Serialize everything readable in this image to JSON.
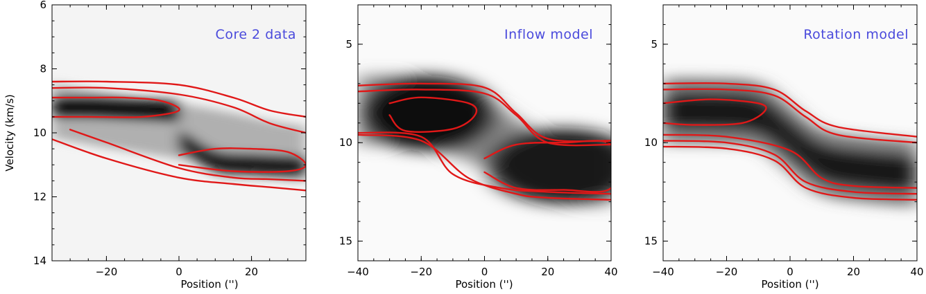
{
  "chart_data": [
    {
      "type": "heatmap",
      "title": "Core 2 data",
      "xlabel": "Position ('')",
      "ylabel": "Velocity (km/s)",
      "xlim": [
        -35,
        35
      ],
      "ylim": [
        14,
        6
      ],
      "y_inverted": true,
      "xticks": [
        -20,
        0,
        20
      ],
      "yticks": [
        6,
        8,
        10,
        12,
        14
      ],
      "colormap": "grayscale (white low, black high)",
      "title_color": "#4a4adc",
      "contour_color": "#e01818",
      "intensity_ridges": [
        {
          "x": [
            -35,
            -25,
            -15,
            -5,
            0
          ],
          "y": [
            9.2,
            9.2,
            9.25,
            9.3,
            9.35
          ],
          "amplitude": 1.0
        },
        {
          "x": [
            0,
            10,
            20,
            30,
            35
          ],
          "y": [
            10.2,
            10.9,
            11.0,
            11.05,
            11.05
          ],
          "amplitude": 0.85
        }
      ],
      "contours": [
        {
          "level": "outer",
          "x_upper": [
            -35,
            -20,
            0,
            15,
            25,
            35
          ],
          "y_upper": [
            8.4,
            8.4,
            8.5,
            8.9,
            9.3,
            9.5
          ],
          "x_lower": [
            -35,
            -20,
            0,
            15,
            25,
            35
          ],
          "y_lower": [
            10.2,
            10.8,
            11.4,
            11.6,
            11.7,
            11.8
          ]
        },
        {
          "level": "middle",
          "x_upper": [
            -35,
            -20,
            0,
            15,
            25,
            35
          ],
          "y_upper": [
            8.6,
            8.6,
            8.8,
            9.2,
            9.7,
            10.0
          ],
          "x_lower": [
            -30,
            -20,
            0,
            15,
            25,
            35
          ],
          "y_lower": [
            9.9,
            10.3,
            11.1,
            11.4,
            11.45,
            11.5
          ]
        },
        {
          "level": "inner-left",
          "x": [
            -35,
            -25,
            -15,
            -5,
            0,
            -10,
            -25,
            -35
          ],
          "y": [
            8.9,
            8.9,
            8.9,
            9.0,
            9.3,
            9.5,
            9.5,
            9.5
          ]
        },
        {
          "level": "inner-right",
          "x": [
            0,
            10,
            20,
            30,
            35,
            30,
            15,
            0
          ],
          "y": [
            10.7,
            10.5,
            10.5,
            10.6,
            11.0,
            11.2,
            11.2,
            11.0
          ]
        }
      ]
    },
    {
      "type": "heatmap",
      "title": "Inflow model",
      "xlabel": "Position ('')",
      "ylabel": "",
      "xlim": [
        -40,
        40
      ],
      "ylim": [
        16,
        3
      ],
      "y_inverted": true,
      "xticks": [
        -40,
        -20,
        0,
        20,
        40
      ],
      "yticks": [
        5,
        10,
        15
      ],
      "colormap": "grayscale (white low, black high)",
      "title_color": "#4a4adc",
      "contour_color": "#e01818",
      "intensity_peaks": [
        {
          "x": -18,
          "y": 8.5,
          "sx": 14,
          "sy": 1.2,
          "amplitude": 1.0
        },
        {
          "x": 25,
          "y": 11.2,
          "sx": 16,
          "sy": 1.2,
          "amplitude": 0.95
        }
      ],
      "contours": [
        {
          "level": "outer",
          "x_upper": [
            -40,
            -20,
            0,
            10,
            20,
            40
          ],
          "y_upper": [
            7.1,
            7.0,
            7.2,
            8.5,
            9.8,
            9.9
          ],
          "x_lower": [
            -40,
            -20,
            -5,
            10,
            20,
            40
          ],
          "y_lower": [
            9.6,
            9.9,
            11.8,
            12.6,
            12.8,
            12.9
          ]
        },
        {
          "level": "middle",
          "x_upper": [
            -40,
            -20,
            0,
            10,
            20,
            40
          ],
          "y_upper": [
            7.4,
            7.3,
            7.5,
            8.6,
            10.0,
            10.1
          ],
          "x_lower": [
            -40,
            -20,
            -10,
            5,
            20,
            40
          ],
          "y_lower": [
            9.5,
            9.7,
            11.6,
            12.3,
            12.5,
            12.6
          ]
        },
        {
          "level": "inner-left",
          "x": [
            -30,
            -20,
            -5,
            -3,
            -10,
            -25,
            -30
          ],
          "y": [
            8.0,
            7.7,
            8.0,
            8.6,
            9.3,
            9.4,
            8.6
          ]
        },
        {
          "level": "inner-right",
          "x": [
            0,
            10,
            25,
            40,
            40,
            25,
            10,
            0
          ],
          "y": [
            10.8,
            10.1,
            10.0,
            10.1,
            12.3,
            12.4,
            12.3,
            11.5
          ]
        }
      ]
    },
    {
      "type": "heatmap",
      "title": "Rotation model",
      "xlabel": "Position ('')",
      "ylabel": "",
      "xlim": [
        -40,
        40
      ],
      "ylim": [
        16,
        3
      ],
      "y_inverted": true,
      "xticks": [
        -40,
        -20,
        0,
        20,
        40
      ],
      "yticks": [
        5,
        10,
        15
      ],
      "colormap": "grayscale (white low, black high)",
      "title_color": "#4a4adc",
      "contour_color": "#e01818",
      "intensity_ridge": {
        "x": [
          -40,
          -25,
          -10,
          0,
          10,
          25,
          40
        ],
        "y": [
          8.4,
          8.4,
          8.6,
          9.8,
          11.0,
          11.4,
          11.6
        ]
      },
      "contours": [
        {
          "level": "outer",
          "x_upper": [
            -40,
            -20,
            -5,
            5,
            15,
            40
          ],
          "y_upper": [
            7.0,
            7.0,
            7.3,
            8.4,
            9.2,
            9.7
          ],
          "x_lower": [
            -40,
            -20,
            -5,
            5,
            20,
            40
          ],
          "y_lower": [
            10.2,
            10.3,
            10.9,
            12.3,
            12.8,
            12.9
          ]
        },
        {
          "level": "middle",
          "x_upper": [
            -40,
            -20,
            -5,
            5,
            15,
            40
          ],
          "y_upper": [
            7.3,
            7.3,
            7.6,
            8.7,
            9.6,
            10.0
          ],
          "x_lower": [
            -40,
            -20,
            -5,
            5,
            20,
            40
          ],
          "y_lower": [
            9.9,
            10.0,
            10.6,
            12.0,
            12.5,
            12.6
          ]
        },
        {
          "level": "inner-left",
          "x": [
            -40,
            -25,
            -10,
            -8,
            -15,
            -30,
            -40
          ],
          "y": [
            8.0,
            7.8,
            8.0,
            8.4,
            9.0,
            9.1,
            9.0
          ]
        },
        {
          "level": "inner-right",
          "x": [
            -40,
            -20,
            0,
            10,
            20,
            40
          ],
          "y": [
            9.6,
            9.7,
            10.4,
            11.8,
            12.2,
            12.3
          ]
        }
      ]
    }
  ]
}
